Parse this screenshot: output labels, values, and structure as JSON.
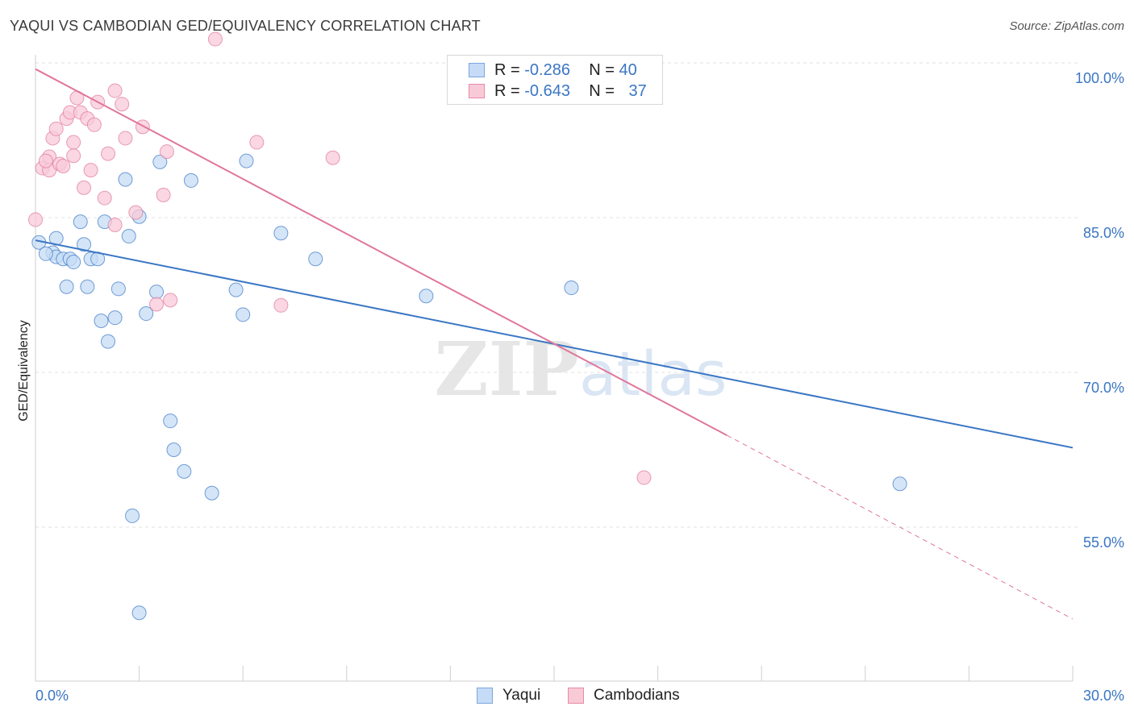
{
  "title": "YAQUI VS CAMBODIAN GED/EQUIVALENCY CORRELATION CHART",
  "source": "Source: ZipAtlas.com",
  "watermark": "ZIPatlas",
  "legend": {
    "r_label": "R =",
    "n_label": "N =",
    "rows": [
      {
        "series": "Yaqui",
        "r": "-0.286",
        "n": "40",
        "color": "#7aa6e0",
        "fill": "#c6dcf6"
      },
      {
        "series": "Cambodians",
        "r": "-0.643",
        "n": "37",
        "color": "#e88aa6",
        "fill": "#f8cad8"
      }
    ]
  },
  "chart_data": {
    "type": "scatter",
    "title": "YAQUI VS CAMBODIAN GED/EQUIVALENCY CORRELATION CHART",
    "xlabel": "",
    "ylabel": "GED/Equivalency",
    "xlim": [
      0,
      30
    ],
    "ylim": [
      40,
      102
    ],
    "x_tick_labels": [
      "0.0%",
      "30.0%"
    ],
    "y_ticks": [
      55,
      70,
      85,
      100
    ],
    "y_tick_labels": [
      "55.0%",
      "70.0%",
      "85.0%",
      "100.0%"
    ],
    "series": [
      {
        "name": "Yaqui",
        "color": "#3a76c4",
        "fill": "#c6dcf6",
        "points": [
          [
            0.1,
            82.6
          ],
          [
            0.5,
            81.6
          ],
          [
            0.6,
            81.2
          ],
          [
            0.6,
            83.0
          ],
          [
            0.8,
            81.0
          ],
          [
            1.0,
            81.0
          ],
          [
            0.9,
            78.3
          ],
          [
            1.1,
            80.7
          ],
          [
            1.3,
            84.6
          ],
          [
            1.4,
            82.4
          ],
          [
            1.5,
            78.3
          ],
          [
            1.6,
            81.0
          ],
          [
            1.8,
            81.0
          ],
          [
            1.9,
            75.0
          ],
          [
            2.0,
            84.6
          ],
          [
            2.1,
            73.0
          ],
          [
            2.3,
            75.3
          ],
          [
            2.4,
            78.1
          ],
          [
            2.6,
            88.7
          ],
          [
            2.7,
            83.2
          ],
          [
            3.0,
            85.1
          ],
          [
            3.2,
            75.7
          ],
          [
            3.5,
            77.8
          ],
          [
            3.6,
            90.4
          ],
          [
            3.9,
            65.3
          ],
          [
            4.0,
            62.5
          ],
          [
            4.3,
            60.4
          ],
          [
            4.5,
            88.6
          ],
          [
            5.1,
            58.3
          ],
          [
            5.8,
            78.0
          ],
          [
            6.0,
            75.6
          ],
          [
            6.1,
            90.5
          ],
          [
            7.1,
            83.5
          ],
          [
            8.1,
            81.0
          ],
          [
            11.3,
            77.4
          ],
          [
            15.5,
            78.2
          ],
          [
            2.8,
            56.1
          ],
          [
            25.0,
            59.2
          ],
          [
            3.0,
            46.7
          ],
          [
            0.3,
            81.5
          ]
        ]
      },
      {
        "name": "Cambodians",
        "color": "#e0769a",
        "fill": "#f8cad8",
        "points": [
          [
            0.0,
            84.8
          ],
          [
            0.2,
            89.8
          ],
          [
            0.4,
            89.6
          ],
          [
            0.4,
            90.9
          ],
          [
            0.5,
            92.7
          ],
          [
            0.6,
            93.6
          ],
          [
            0.7,
            90.2
          ],
          [
            0.8,
            90.0
          ],
          [
            0.9,
            94.6
          ],
          [
            1.0,
            95.2
          ],
          [
            1.1,
            92.3
          ],
          [
            1.2,
            96.6
          ],
          [
            1.3,
            95.2
          ],
          [
            1.4,
            87.9
          ],
          [
            1.5,
            94.6
          ],
          [
            1.6,
            89.6
          ],
          [
            1.7,
            94.0
          ],
          [
            1.8,
            96.2
          ],
          [
            2.0,
            86.9
          ],
          [
            2.1,
            91.2
          ],
          [
            2.3,
            84.3
          ],
          [
            2.3,
            97.3
          ],
          [
            2.5,
            96.0
          ],
          [
            2.6,
            92.7
          ],
          [
            2.9,
            85.5
          ],
          [
            3.1,
            93.8
          ],
          [
            3.5,
            76.6
          ],
          [
            3.7,
            87.2
          ],
          [
            3.8,
            91.4
          ],
          [
            3.9,
            77.0
          ],
          [
            5.2,
            102.3
          ],
          [
            6.4,
            92.3
          ],
          [
            7.1,
            76.5
          ],
          [
            8.6,
            90.8
          ],
          [
            17.6,
            59.8
          ],
          [
            1.1,
            91.0
          ],
          [
            0.3,
            90.5
          ]
        ]
      }
    ],
    "trend_lines": [
      {
        "series": "Yaqui",
        "x": [
          0,
          30
        ],
        "y": [
          82.8,
          62.7
        ],
        "style": "solid"
      },
      {
        "series": "Cambodians",
        "x": [
          0,
          20
        ],
        "y": [
          99.4,
          63.9
        ],
        "style": "solid"
      },
      {
        "series": "Cambodians",
        "x": [
          20,
          30
        ],
        "y": [
          63.9,
          46.1
        ],
        "style": "dashed"
      }
    ]
  }
}
